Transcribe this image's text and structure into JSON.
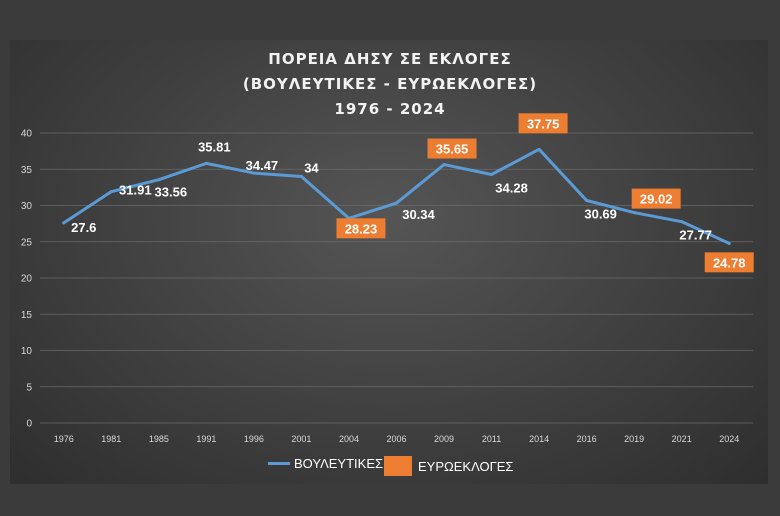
{
  "chart_data": {
    "type": "line",
    "title": "ΠΟΡΕΙΑ ΔΗΣΥ ΣΕ ΕΚΛΟΓΕΣ",
    "subtitle": "(ΒΟΥΛΕΥΤΙΚΕΣ - ΕΥΡΩΕΚΛΟΓΕΣ)",
    "subtitle2": "1976 - 2024",
    "categories": [
      "1976",
      "1981",
      "1985",
      "1991",
      "1996",
      "2001",
      "2004",
      "2006",
      "2009",
      "2011",
      "2014",
      "2016",
      "2019",
      "2021",
      "2024"
    ],
    "values": [
      27.6,
      31.91,
      33.56,
      35.81,
      34.47,
      34,
      28.23,
      30.34,
      35.65,
      34.28,
      37.75,
      30.69,
      29.02,
      27.77,
      24.78
    ],
    "labels": [
      "27.6",
      "31.91",
      "33.56",
      "35.81",
      "34.47",
      "34",
      "28.23",
      "30.34",
      "35.65",
      "34.28",
      "37.75",
      "30.69",
      "29.02",
      "27.77",
      "24.78"
    ],
    "election_type": [
      "ΒΟΥΛΕΥΤΙΚΕΣ",
      "ΒΟΥΛΕΥΤΙΚΕΣ",
      "ΒΟΥΛΕΥΤΙΚΕΣ",
      "ΒΟΥΛΕΥΤΙΚΕΣ",
      "ΒΟΥΛΕΥΤΙΚΕΣ",
      "ΒΟΥΛΕΥΤΙΚΕΣ",
      "ΕΥΡΩΕΚΛΟΓΕΣ",
      "ΒΟΥΛΕΥΤΙΚΕΣ",
      "ΕΥΡΩΕΚΛΟΓΕΣ",
      "ΒΟΥΛΕΥΤΙΚΕΣ",
      "ΕΥΡΩΕΚΛΟΓΕΣ",
      "ΒΟΥΛΕΥΤΙΚΕΣ",
      "ΕΥΡΩΕΚΛΟΓΕΣ",
      "ΒΟΥΛΕΥΤΙΚΕΣ",
      "ΕΥΡΩΕΚΛΟΓΕΣ"
    ],
    "ylim": [
      0,
      40
    ],
    "yticks": [
      0,
      5,
      10,
      15,
      20,
      25,
      30,
      35,
      40
    ],
    "grid": true,
    "legend_position": "bottom",
    "legend": [
      "ΒΟΥΛΕΥΤΙΚΕΣ",
      "ΕΥΡΩΕΚΛΟΓΕΣ"
    ],
    "colors": {
      "line": "#5b9bd5",
      "euro": "#ed7d31",
      "grid": "#6a6a6a",
      "text": "#ffffff"
    }
  }
}
